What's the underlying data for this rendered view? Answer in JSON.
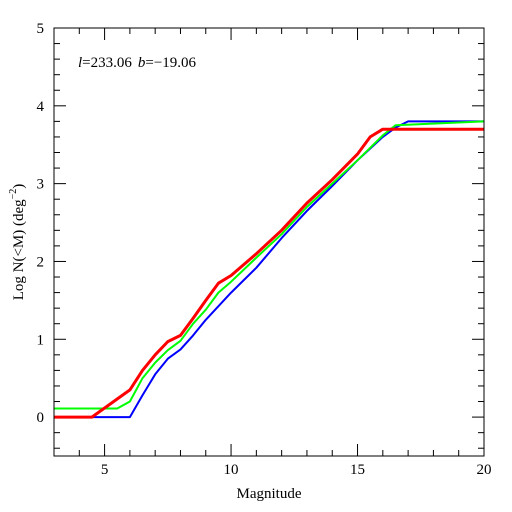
{
  "chart_data": {
    "type": "line",
    "xlabel": "Magnitude",
    "ylabel": "Log N(<M) (deg",
    "ylabel_sup": "−2",
    "ylabel_close": ")",
    "xlim": [
      3,
      20
    ],
    "ylim": [
      -0.5,
      5
    ],
    "x_ticks": [
      "5",
      "10",
      "15",
      "20"
    ],
    "y_ticks": [
      "0",
      "1",
      "2",
      "3",
      "4",
      "5"
    ],
    "x_tick_values": [
      5,
      10,
      15,
      20
    ],
    "y_tick_values": [
      0,
      1,
      2,
      3,
      4,
      5
    ],
    "annotation": {
      "l_symbol": "l",
      "l_value": "=233.06",
      "b_symbol": "b",
      "b_value": "=−19.06"
    },
    "series": [
      {
        "color": "#0000ff",
        "width": 2,
        "x": [
          3,
          6,
          6.5,
          7,
          7.5,
          8,
          8.5,
          9,
          10,
          11,
          12,
          13,
          14,
          15,
          16,
          16.5,
          17,
          20
        ],
        "y": [
          0,
          0,
          0.28,
          0.55,
          0.75,
          0.87,
          1.05,
          1.25,
          1.6,
          1.92,
          2.3,
          2.65,
          2.97,
          3.3,
          3.6,
          3.72,
          3.8,
          3.8
        ]
      },
      {
        "color": "#00ff00",
        "width": 2,
        "x": [
          3,
          5.5,
          6,
          6.5,
          7,
          7.5,
          8,
          8.5,
          9,
          9.5,
          10,
          11,
          12,
          13,
          14,
          15,
          16,
          16.5,
          20
        ],
        "y": [
          0.11,
          0.11,
          0.2,
          0.5,
          0.7,
          0.86,
          0.98,
          1.2,
          1.38,
          1.6,
          1.74,
          2.05,
          2.35,
          2.7,
          3.0,
          3.3,
          3.62,
          3.75,
          3.8
        ]
      },
      {
        "color": "#ff0000",
        "width": 3,
        "x": [
          3,
          4.5,
          6,
          6.5,
          7,
          7.5,
          8,
          8.5,
          9,
          9.5,
          10,
          11,
          12,
          13,
          14,
          15,
          15.5,
          16,
          20
        ],
        "y": [
          0,
          0,
          0.35,
          0.6,
          0.8,
          0.97,
          1.05,
          1.27,
          1.5,
          1.72,
          1.82,
          2.1,
          2.4,
          2.75,
          3.05,
          3.38,
          3.6,
          3.7,
          3.7
        ]
      }
    ]
  }
}
